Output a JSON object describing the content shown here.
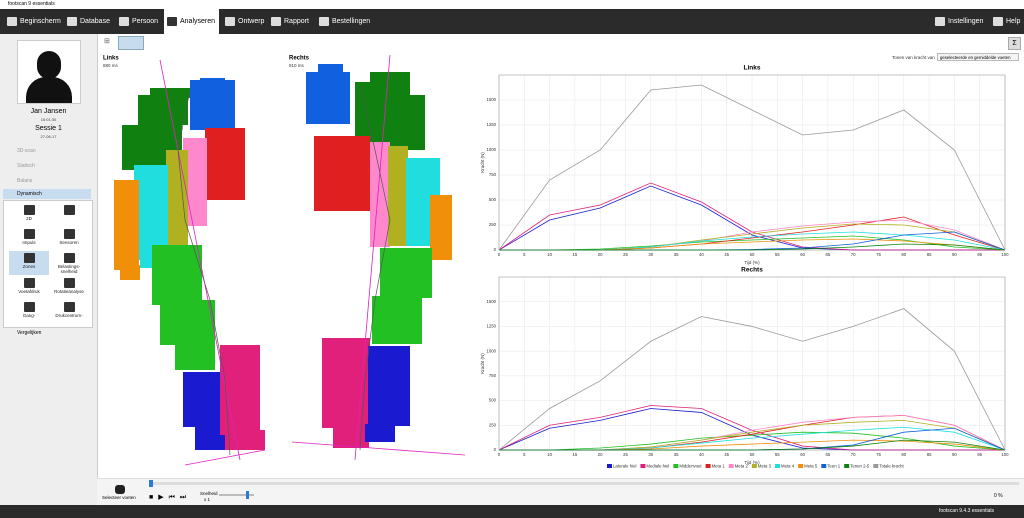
{
  "window_title": "footscan 9 essentials",
  "toolbar": {
    "tabs": [
      "Beginscherm",
      "Database",
      "Persoon",
      "Analyseren",
      "Ontwerp",
      "Rapport",
      "Bestellingen"
    ],
    "settings": "Instellingen",
    "help": "Help"
  },
  "patient": {
    "name": "Jan Jansen",
    "time": "15:01:30",
    "session": "Sessie 1",
    "date": "27-06-17"
  },
  "sidebar": {
    "modes": [
      "3D-scan",
      "Statisch",
      "Balans",
      "Dynamisch"
    ],
    "tools": [
      "2D",
      "Impuls",
      "Sensoren",
      "Zones",
      "Belastings- snelheid",
      "Voetafdruk",
      "Rotatieanalyse",
      "Gang-",
      "Drukcentrum-"
    ],
    "compare": "Vergelijken"
  },
  "feet": {
    "left": {
      "label": "Links",
      "duration": "880 ms"
    },
    "right": {
      "label": "Rechts",
      "duration": "910 ms"
    }
  },
  "force_from": {
    "label": "Tonen van kracht van",
    "value": "geselecteerde en gemiddelde voeten"
  },
  "playback": {
    "select_feet": "Selecteer voeten",
    "speed_label": "Snelheid",
    "speed": "x 1",
    "progress": "0 %"
  },
  "status": "footscan 9.4.3 essentials",
  "chart_data": [
    {
      "type": "line",
      "title": "Links",
      "x_label": "Tijd (%)",
      "y_label": "Kracht (N)",
      "grid": true,
      "x": [
        0,
        10,
        20,
        30,
        40,
        50,
        60,
        70,
        80,
        90,
        100
      ],
      "xlim": [
        0,
        100
      ],
      "xticks": [
        0,
        5,
        10,
        15,
        20,
        25,
        30,
        35,
        40,
        45,
        50,
        55,
        60,
        65,
        70,
        75,
        80,
        85,
        90,
        95,
        100
      ],
      "ylim": [
        0,
        1750
      ],
      "yticks": [
        0,
        250,
        500,
        750,
        1000,
        1250,
        1500
      ],
      "series": [
        {
          "color": "#1a1ad0",
          "values": [
            0,
            300,
            420,
            640,
            450,
            150,
            20,
            0,
            0,
            0,
            0
          ]
        },
        {
          "color": "#e0207a",
          "values": [
            0,
            350,
            450,
            670,
            480,
            180,
            30,
            0,
            0,
            0,
            0
          ]
        },
        {
          "color": "#22c022",
          "values": [
            0,
            0,
            10,
            40,
            80,
            100,
            120,
            140,
            100,
            30,
            0
          ]
        },
        {
          "color": "#e02020",
          "values": [
            0,
            0,
            0,
            20,
            60,
            120,
            180,
            250,
            330,
            150,
            0
          ]
        },
        {
          "color": "#ff88cc",
          "values": [
            0,
            0,
            0,
            30,
            90,
            180,
            240,
            280,
            300,
            200,
            0
          ]
        },
        {
          "color": "#b0b020",
          "values": [
            0,
            0,
            0,
            30,
            100,
            160,
            220,
            260,
            250,
            180,
            0
          ]
        },
        {
          "color": "#20dede",
          "values": [
            0,
            0,
            0,
            30,
            90,
            130,
            160,
            180,
            150,
            100,
            0
          ]
        },
        {
          "color": "#f0900a",
          "values": [
            0,
            0,
            0,
            20,
            60,
            80,
            100,
            110,
            90,
            50,
            0
          ]
        },
        {
          "color": "#1060e0",
          "values": [
            0,
            0,
            0,
            0,
            0,
            5,
            20,
            60,
            150,
            180,
            0
          ]
        },
        {
          "color": "#108010",
          "values": [
            0,
            0,
            0,
            0,
            0,
            0,
            10,
            30,
            60,
            50,
            0
          ]
        },
        {
          "color": "#999999",
          "values": [
            0,
            700,
            1000,
            1600,
            1650,
            1400,
            1150,
            1200,
            1400,
            1000,
            0
          ]
        }
      ]
    },
    {
      "type": "line",
      "title": "Rechts",
      "x_label": "Tijd (%)",
      "y_label": "Kracht (N)",
      "grid": true,
      "x": [
        0,
        10,
        20,
        30,
        40,
        50,
        60,
        70,
        80,
        90,
        100
      ],
      "xlim": [
        0,
        100
      ],
      "xticks": [
        0,
        5,
        10,
        15,
        20,
        25,
        30,
        35,
        40,
        45,
        50,
        55,
        60,
        65,
        70,
        75,
        80,
        85,
        90,
        95,
        100
      ],
      "ylim": [
        0,
        1750
      ],
      "yticks": [
        0,
        250,
        500,
        750,
        1000,
        1250,
        1500
      ],
      "series": [
        {
          "name": "Laterale hiel",
          "color": "#1a1ad0",
          "values": [
            0,
            220,
            300,
            420,
            380,
            150,
            20,
            0,
            0,
            0,
            0
          ]
        },
        {
          "name": "Mediale hiel",
          "color": "#e0207a",
          "values": [
            0,
            250,
            330,
            450,
            420,
            200,
            40,
            0,
            0,
            0,
            0
          ]
        },
        {
          "name": "Middenvoet",
          "color": "#22c022",
          "values": [
            0,
            0,
            20,
            60,
            120,
            150,
            180,
            170,
            120,
            40,
            0
          ]
        },
        {
          "name": "Meta 1",
          "color": "#e02020",
          "values": [
            0,
            0,
            0,
            20,
            80,
            160,
            250,
            330,
            350,
            250,
            0
          ]
        },
        {
          "name": "Meta 2",
          "color": "#ff88cc",
          "values": [
            0,
            0,
            0,
            30,
            100,
            200,
            280,
            330,
            350,
            250,
            0
          ]
        },
        {
          "name": "Meta 3",
          "color": "#b0b020",
          "values": [
            0,
            0,
            0,
            30,
            100,
            180,
            250,
            280,
            300,
            220,
            0
          ]
        },
        {
          "name": "Meta 4",
          "color": "#20dede",
          "values": [
            0,
            0,
            0,
            20,
            70,
            120,
            160,
            200,
            230,
            180,
            0
          ]
        },
        {
          "name": "Meta 5",
          "color": "#f0900a",
          "values": [
            0,
            0,
            0,
            10,
            40,
            60,
            80,
            100,
            90,
            60,
            0
          ]
        },
        {
          "name": "Teen 1",
          "color": "#1060e0",
          "values": [
            0,
            0,
            0,
            0,
            0,
            0,
            10,
            50,
            180,
            220,
            0
          ]
        },
        {
          "name": "Tenen 2-5",
          "color": "#108010",
          "values": [
            0,
            0,
            0,
            0,
            0,
            0,
            10,
            40,
            100,
            80,
            0
          ]
        },
        {
          "name": "Totale kracht",
          "color": "#999999",
          "values": [
            0,
            420,
            700,
            1100,
            1350,
            1250,
            1100,
            1250,
            1430,
            1000,
            0
          ]
        }
      ]
    }
  ]
}
